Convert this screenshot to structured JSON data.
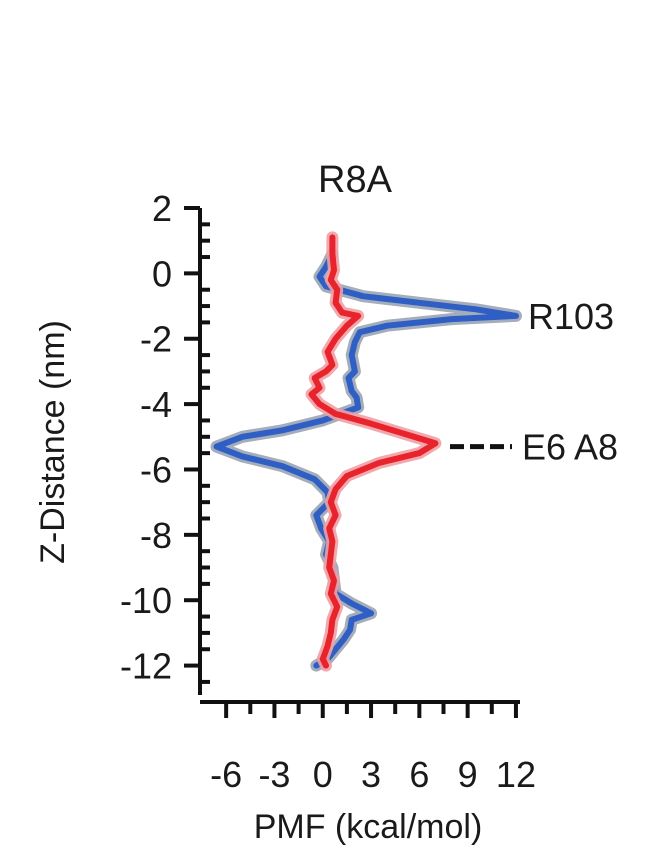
{
  "chart_data": {
    "type": "line",
    "title": "R8A",
    "xlabel": "PMF (kcal/mol)",
    "ylabel": "Z-Distance (nm)",
    "xlim": [
      -7.5,
      12.5
    ],
    "ylim": [
      -12.9,
      2
    ],
    "x_ticks": [
      -6,
      -3,
      0,
      3,
      6,
      9,
      12
    ],
    "y_ticks": [
      2,
      0,
      -2,
      -4,
      -6,
      -8,
      -10,
      -12
    ],
    "grid": false,
    "legend": "none",
    "annotations": [
      {
        "text": "R103",
        "y": -1.3,
        "dashed": false
      },
      {
        "text": "E6 A8",
        "y": -5.3,
        "dashed": true
      }
    ],
    "series": [
      {
        "color": "#2f5fc4",
        "halo": "#9aa4b4",
        "points": [
          [
            0.6,
            0.6
          ],
          [
            0.2,
            0.2
          ],
          [
            -0.2,
            -0.1
          ],
          [
            0.2,
            -0.4
          ],
          [
            1.0,
            -0.5
          ],
          [
            2.5,
            -0.7
          ],
          [
            6.0,
            -0.9
          ],
          [
            9.5,
            -1.1
          ],
          [
            12.0,
            -1.3
          ],
          [
            8.0,
            -1.4
          ],
          [
            4.0,
            -1.6
          ],
          [
            2.3,
            -1.8
          ],
          [
            2.0,
            -2.1
          ],
          [
            1.8,
            -2.5
          ],
          [
            2.0,
            -3.0
          ],
          [
            1.6,
            -3.2
          ],
          [
            1.8,
            -3.6
          ],
          [
            2.1,
            -3.8
          ],
          [
            2.2,
            -4.1
          ],
          [
            0.0,
            -4.5
          ],
          [
            -2.5,
            -4.8
          ],
          [
            -5.0,
            -5.0
          ],
          [
            -6.6,
            -5.3
          ],
          [
            -5.0,
            -5.6
          ],
          [
            -2.5,
            -5.9
          ],
          [
            -0.5,
            -6.3
          ],
          [
            0.3,
            -6.7
          ],
          [
            0.4,
            -7.0
          ],
          [
            -0.4,
            -7.4
          ],
          [
            -0.1,
            -7.8
          ],
          [
            0.4,
            -8.2
          ],
          [
            0.2,
            -8.6
          ],
          [
            0.6,
            -9.0
          ],
          [
            0.7,
            -9.4
          ],
          [
            0.8,
            -9.8
          ],
          [
            1.8,
            -10.1
          ],
          [
            3.0,
            -10.4
          ],
          [
            1.8,
            -10.6
          ],
          [
            1.7,
            -10.9
          ],
          [
            1.3,
            -11.2
          ],
          [
            0.8,
            -11.5
          ],
          [
            0.3,
            -11.8
          ],
          [
            -0.4,
            -12.0
          ]
        ]
      },
      {
        "color": "#e8232b",
        "halo": "#f0a0a4",
        "points": [
          [
            0.6,
            1.1
          ],
          [
            0.6,
            0.6
          ],
          [
            0.7,
            0.1
          ],
          [
            0.5,
            -0.2
          ],
          [
            0.9,
            -0.5
          ],
          [
            0.8,
            -0.9
          ],
          [
            1.2,
            -1.2
          ],
          [
            2.2,
            -1.3
          ],
          [
            1.5,
            -1.6
          ],
          [
            0.8,
            -2.0
          ],
          [
            0.3,
            -2.4
          ],
          [
            0.6,
            -2.8
          ],
          [
            0.2,
            -3.0
          ],
          [
            -0.5,
            -3.2
          ],
          [
            -0.2,
            -3.5
          ],
          [
            -0.7,
            -3.7
          ],
          [
            -0.2,
            -4.0
          ],
          [
            0.8,
            -4.3
          ],
          [
            3.0,
            -4.6
          ],
          [
            5.0,
            -4.9
          ],
          [
            7.0,
            -5.2
          ],
          [
            6.0,
            -5.5
          ],
          [
            3.5,
            -5.8
          ],
          [
            1.5,
            -6.2
          ],
          [
            0.8,
            -6.6
          ],
          [
            0.5,
            -7.0
          ],
          [
            0.8,
            -7.4
          ],
          [
            0.4,
            -7.8
          ],
          [
            0.6,
            -8.2
          ],
          [
            0.5,
            -8.6
          ],
          [
            0.4,
            -9.0
          ],
          [
            0.7,
            -9.4
          ],
          [
            0.5,
            -9.8
          ],
          [
            0.9,
            -10.2
          ],
          [
            0.6,
            -10.6
          ],
          [
            0.5,
            -11.0
          ],
          [
            0.3,
            -11.4
          ],
          [
            0.0,
            -11.8
          ],
          [
            0.2,
            -12.0
          ]
        ]
      }
    ]
  }
}
